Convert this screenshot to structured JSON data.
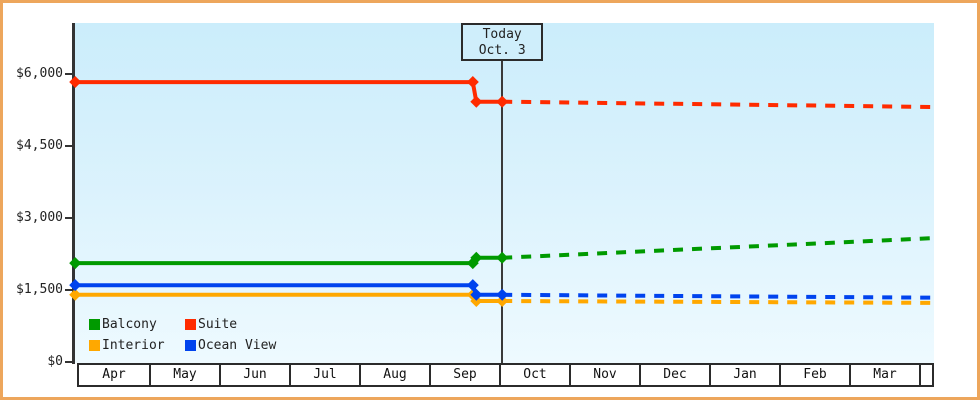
{
  "colors": {
    "frame_border": "#eda65c",
    "plot_background_top": "#cbedfb",
    "plot_background_bottom": "#eefaff",
    "axis": "#333333",
    "text": "#222222"
  },
  "chart_data": {
    "type": "line",
    "title": "",
    "x_axis": {
      "months": [
        "Apr",
        "May",
        "Jun",
        "Jul",
        "Aug",
        "Sep",
        "Oct",
        "Nov",
        "Dec",
        "Jan",
        "Feb",
        "Mar",
        ""
      ]
    },
    "y_axis": {
      "ticks": [
        {
          "label": "$0",
          "value": 0
        },
        {
          "label": "$1,500",
          "value": 1500
        },
        {
          "label": "$3,000",
          "value": 3000
        },
        {
          "label": "$4,500",
          "value": 4500
        },
        {
          "label": "$6,000",
          "value": 6000
        }
      ],
      "ylim": [
        0,
        7060
      ]
    },
    "annotation": {
      "line1": "Today",
      "line2": "Oct. 3",
      "month_position": 6.06
    },
    "series": [
      {
        "name": "Interior",
        "color": "#ffa800",
        "solid": [
          [
            -0.04,
            1400
          ],
          [
            5.64,
            1400
          ],
          [
            5.69,
            1270
          ],
          [
            6.06,
            1270
          ]
        ],
        "dashed": [
          [
            6.06,
            1270
          ],
          [
            12.23,
            1230
          ]
        ]
      },
      {
        "name": "Ocean View",
        "color": "#0043ee",
        "solid": [
          [
            -0.04,
            1600
          ],
          [
            5.64,
            1600
          ],
          [
            5.69,
            1400
          ],
          [
            6.06,
            1400
          ]
        ],
        "dashed": [
          [
            6.06,
            1400
          ],
          [
            12.23,
            1340
          ]
        ]
      },
      {
        "name": "Balcony",
        "color": "#009a00",
        "solid": [
          [
            -0.04,
            2060
          ],
          [
            5.64,
            2060
          ],
          [
            5.69,
            2170
          ],
          [
            6.06,
            2170
          ]
        ],
        "dashed": [
          [
            6.06,
            2170
          ],
          [
            12.23,
            2580
          ]
        ]
      },
      {
        "name": "Suite",
        "color": "#ff2b00",
        "solid": [
          [
            -0.04,
            5830
          ],
          [
            5.64,
            5830
          ],
          [
            5.69,
            5420
          ],
          [
            6.06,
            5420
          ]
        ],
        "dashed": [
          [
            6.06,
            5420
          ],
          [
            12.23,
            5310
          ]
        ]
      }
    ],
    "legend": [
      {
        "label": "Balcony",
        "color": "#009a00"
      },
      {
        "label": "Suite",
        "color": "#ff2b00"
      },
      {
        "label": "Interior",
        "color": "#ffa800"
      },
      {
        "label": "Ocean View",
        "color": "#0043ee"
      }
    ]
  }
}
